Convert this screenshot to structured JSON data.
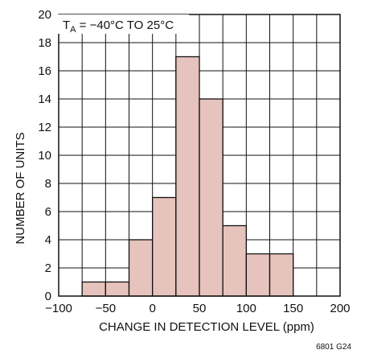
{
  "chart_data": {
    "type": "bar",
    "subtype": "histogram",
    "bin_edges": [
      -75,
      -50,
      -25,
      0,
      25,
      50,
      75,
      100,
      125,
      150
    ],
    "values": [
      1,
      1,
      4,
      7,
      17,
      14,
      5,
      3,
      3
    ],
    "xlabel": "CHANGE IN DETECTION LEVEL (ppm)",
    "ylabel": "NUMBER OF UNITS",
    "xlim": [
      -100,
      200
    ],
    "ylim": [
      0,
      20
    ],
    "x_ticks": [
      -100,
      -75,
      -50,
      -25,
      0,
      25,
      50,
      75,
      100,
      125,
      150,
      175,
      200
    ],
    "x_tick_labels": [
      "−100",
      "",
      "−50",
      "",
      "0",
      "",
      "50",
      "",
      "100",
      "",
      "150",
      "",
      "200"
    ],
    "y_ticks": [
      0,
      2,
      4,
      6,
      8,
      10,
      12,
      14,
      16,
      18,
      20
    ],
    "y_tick_labels": [
      "0",
      "2",
      "4",
      "6",
      "8",
      "10",
      "12",
      "14",
      "16",
      "18",
      "20"
    ],
    "grid": true,
    "annotation": {
      "main": "T",
      "subscript": "A",
      "rest": " = −40°C TO 25°C"
    },
    "figure_code": "6801 G24",
    "colors": {
      "bar_fill": "#e7c3bd",
      "bar_stroke": "#111111",
      "grid": "#111111"
    }
  }
}
